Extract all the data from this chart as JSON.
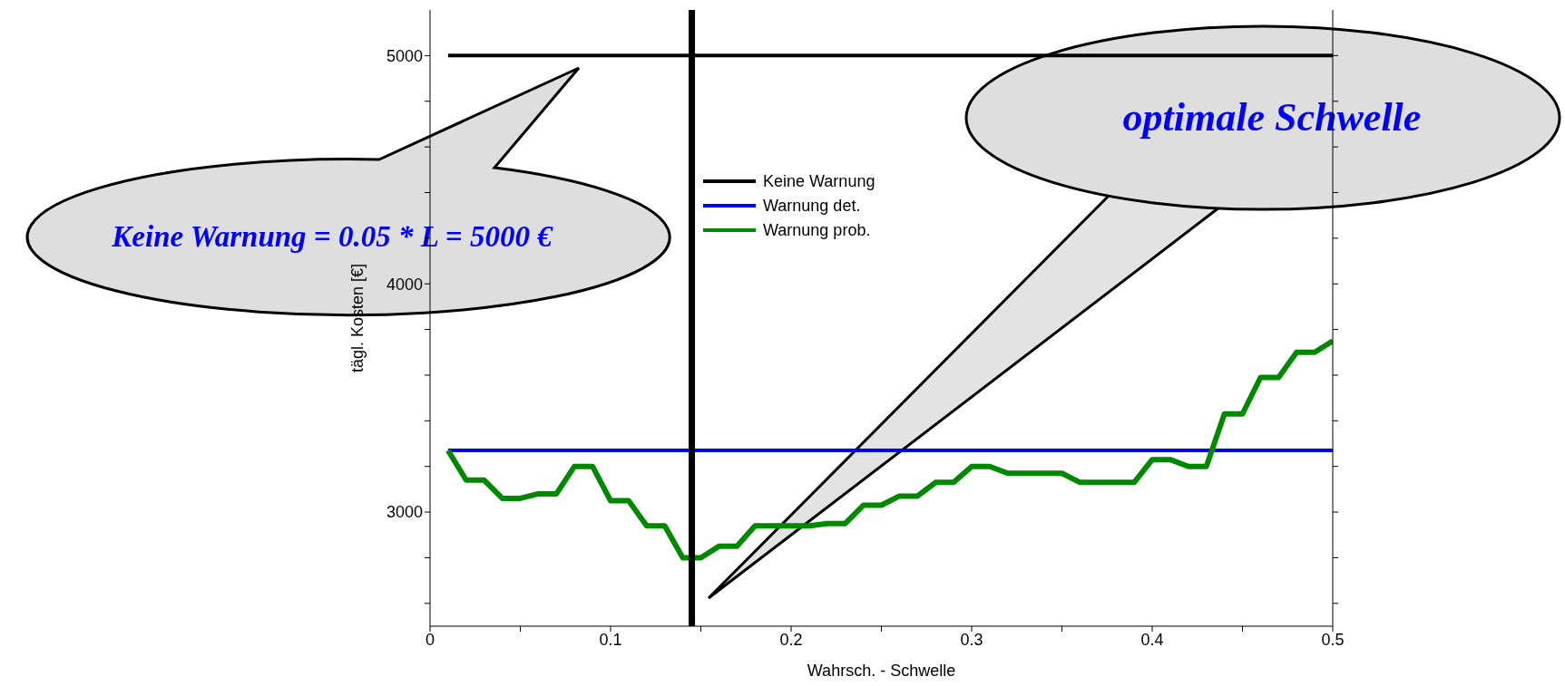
{
  "chart_data": {
    "type": "line",
    "xlabel": "Wahrsch. - Schwelle",
    "ylabel": "tägl. Kosten [€]",
    "x": [
      0.01,
      0.02,
      0.03,
      0.04,
      0.05,
      0.06,
      0.07,
      0.08,
      0.09,
      0.1,
      0.11,
      0.12,
      0.13,
      0.14,
      0.15,
      0.16,
      0.17,
      0.18,
      0.19,
      0.2,
      0.21,
      0.22,
      0.23,
      0.24,
      0.25,
      0.26,
      0.27,
      0.28,
      0.29,
      0.3,
      0.31,
      0.32,
      0.33,
      0.34,
      0.35,
      0.36,
      0.37,
      0.38,
      0.39,
      0.4,
      0.41,
      0.42,
      0.43,
      0.44,
      0.45,
      0.46,
      0.47,
      0.48,
      0.49,
      0.5
    ],
    "series": [
      {
        "name": "Keine Warnung",
        "color": "#000000",
        "values": [
          5000,
          5000,
          5000,
          5000,
          5000,
          5000,
          5000,
          5000,
          5000,
          5000,
          5000,
          5000,
          5000,
          5000,
          5000,
          5000,
          5000,
          5000,
          5000,
          5000,
          5000,
          5000,
          5000,
          5000,
          5000,
          5000,
          5000,
          5000,
          5000,
          5000,
          5000,
          5000,
          5000,
          5000,
          5000,
          5000,
          5000,
          5000,
          5000,
          5000,
          5000,
          5000,
          5000,
          5000,
          5000,
          5000,
          5000,
          5000,
          5000,
          5000
        ]
      },
      {
        "name": "Warnung det.",
        "color": "#0000ff",
        "values": [
          3270,
          3270,
          3270,
          3270,
          3270,
          3270,
          3270,
          3270,
          3270,
          3270,
          3270,
          3270,
          3270,
          3270,
          3270,
          3270,
          3270,
          3270,
          3270,
          3270,
          3270,
          3270,
          3270,
          3270,
          3270,
          3270,
          3270,
          3270,
          3270,
          3270,
          3270,
          3270,
          3270,
          3270,
          3270,
          3270,
          3270,
          3270,
          3270,
          3270,
          3270,
          3270,
          3270,
          3270,
          3270,
          3270,
          3270,
          3270,
          3270,
          3270
        ]
      },
      {
        "name": "Warnung prob.",
        "color": "#008800",
        "values": [
          3270,
          3140,
          3140,
          3060,
          3060,
          3080,
          3080,
          3200,
          3200,
          3050,
          3050,
          2940,
          2940,
          2800,
          2800,
          2850,
          2850,
          2940,
          2940,
          2940,
          2940,
          2950,
          2950,
          3030,
          3030,
          3070,
          3070,
          3130,
          3130,
          3200,
          3200,
          3170,
          3170,
          3170,
          3170,
          3130,
          3130,
          3130,
          3130,
          3230,
          3230,
          3200,
          3200,
          3430,
          3430,
          3590,
          3590,
          3700,
          3700,
          3750
        ]
      }
    ],
    "xlim": [
      0,
      0.5
    ],
    "xticks": [
      0,
      {
        "value": 0.05,
        "label": null
      },
      0.1,
      {
        "value": 0.15,
        "label": null
      },
      0.2,
      {
        "value": 0.25,
        "label": null
      },
      0.3,
      {
        "value": 0.35,
        "label": null
      },
      0.4,
      {
        "value": 0.45,
        "label": null
      },
      0.5
    ],
    "ylim": [
      2500,
      5200
    ],
    "yticks": [
      {
        "value": 2600,
        "label": null
      },
      {
        "value": 2800,
        "label": null
      },
      3000,
      {
        "value": 3200,
        "label": null
      },
      {
        "value": 3400,
        "label": null
      },
      {
        "value": 3600,
        "label": null
      },
      {
        "value": 3800,
        "label": null
      },
      4000,
      {
        "value": 4200,
        "label": null
      },
      {
        "value": 4400,
        "label": null
      },
      {
        "value": 4600,
        "label": null
      },
      {
        "value": 4800,
        "label": null
      },
      5000
    ],
    "ref_lines": [
      {
        "axis": "x",
        "value": 0.145,
        "color": "#000000"
      }
    ],
    "annotations": [
      "Keine Warnung = 0.05 * L = 5000 €",
      "optimale Schwelle"
    ],
    "legend": "top left",
    "marker": "none",
    "line_style": "solid"
  }
}
